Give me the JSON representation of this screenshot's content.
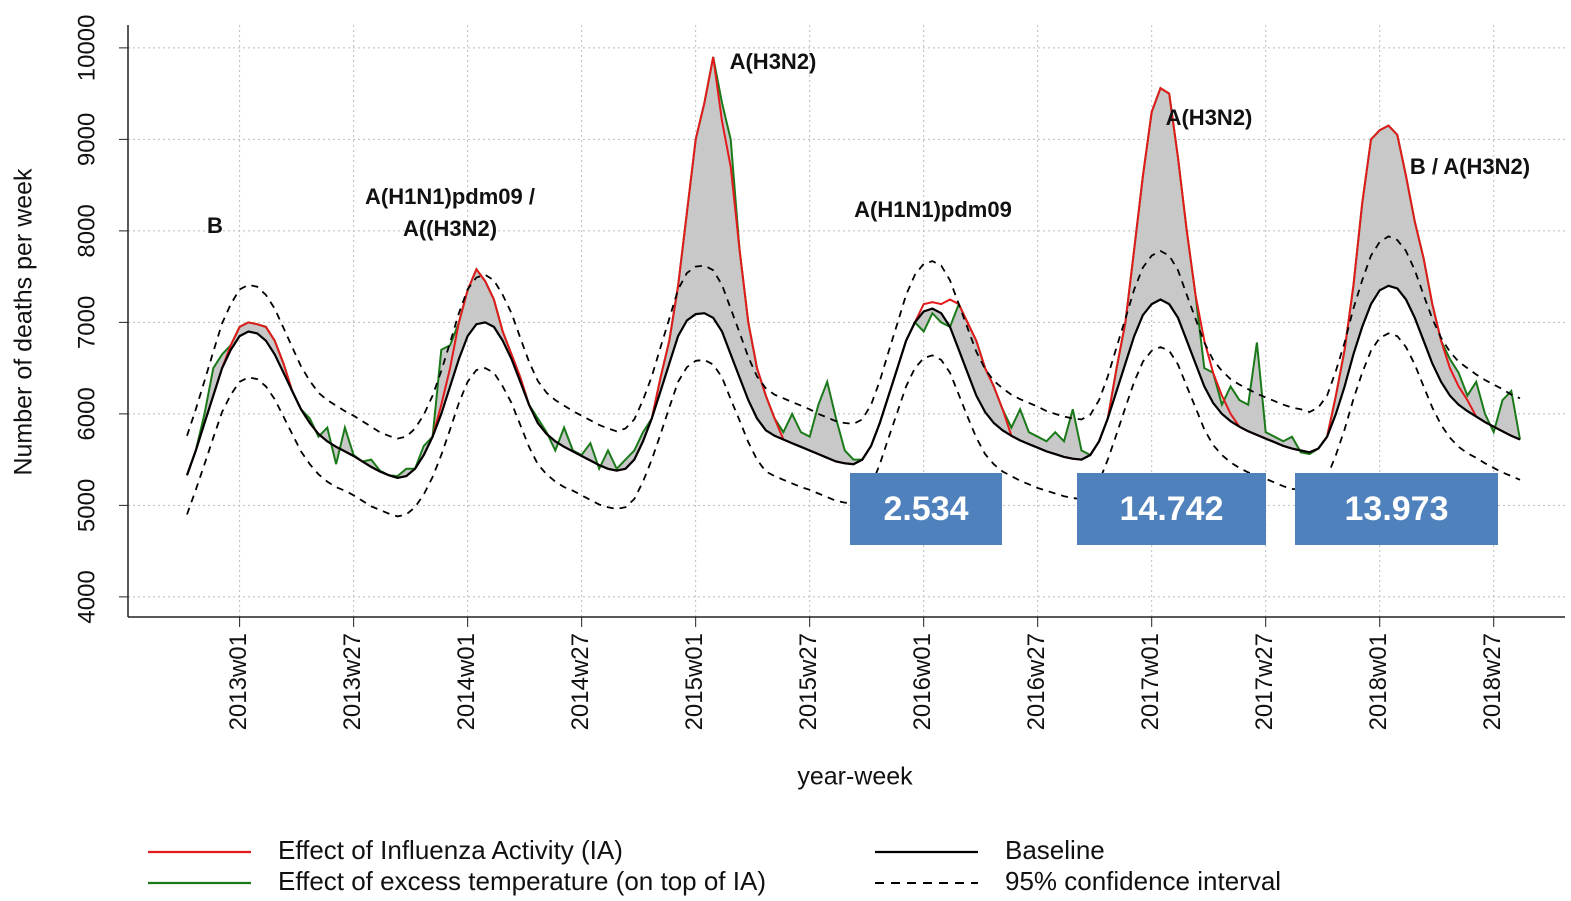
{
  "chart_data": {
    "type": "line",
    "xlabel": "year-week",
    "ylabel": "Number of deaths per week",
    "ylim": [
      3780,
      10250
    ],
    "yticks": [
      4000,
      5000,
      6000,
      7000,
      8000,
      9000,
      10000
    ],
    "grid": true,
    "legend": "bottom",
    "categories": [
      null,
      null,
      null,
      null,
      null,
      null,
      "2013w01",
      null,
      null,
      null,
      null,
      null,
      null,
      null,
      null,
      null,
      null,
      null,
      null,
      "2013w27",
      null,
      null,
      null,
      null,
      null,
      null,
      null,
      null,
      null,
      null,
      null,
      null,
      "2014w01",
      null,
      null,
      null,
      null,
      null,
      null,
      null,
      null,
      null,
      null,
      null,
      null,
      "2014w27",
      null,
      null,
      null,
      null,
      null,
      null,
      null,
      null,
      null,
      null,
      null,
      null,
      "2015w01",
      null,
      null,
      null,
      null,
      null,
      null,
      null,
      null,
      null,
      null,
      null,
      null,
      "2015w27",
      null,
      null,
      null,
      null,
      null,
      null,
      null,
      null,
      null,
      null,
      null,
      null,
      "2016w01",
      null,
      null,
      null,
      null,
      null,
      null,
      null,
      null,
      null,
      null,
      null,
      null,
      "2016w27",
      null,
      null,
      null,
      null,
      null,
      null,
      null,
      null,
      null,
      null,
      null,
      null,
      "2017w01",
      null,
      null,
      null,
      null,
      null,
      null,
      null,
      null,
      null,
      null,
      null,
      null,
      "2017w27",
      null,
      null,
      null,
      null,
      null,
      null,
      null,
      null,
      null,
      null,
      null,
      null,
      "2018w01",
      null,
      null,
      null,
      null,
      null,
      null,
      null,
      null,
      null,
      null,
      null,
      null,
      "2018w27",
      null,
      null,
      null
    ],
    "series": [
      {
        "name": "Effect of Influenza Activity (IA)",
        "color": "#e31a1c",
        "values": [
          5330,
          5600,
          5900,
          6200,
          6500,
          6750,
          6950,
          7000,
          6980,
          6950,
          6800,
          6550,
          6250,
          6050,
          5900,
          5780,
          5700,
          5640,
          5590,
          5540,
          5480,
          5420,
          5370,
          5330,
          5300,
          5320,
          5400,
          5550,
          5750,
          6100,
          6500,
          7000,
          7350,
          7580,
          7450,
          7250,
          6900,
          6650,
          6400,
          6100,
          5900,
          5780,
          5700,
          5640,
          5590,
          5540,
          5490,
          5440,
          5400,
          5380,
          5400,
          5500,
          5700,
          5950,
          6400,
          6800,
          7400,
          8200,
          9000,
          9400,
          9900,
          9200,
          8700,
          7800,
          7000,
          6500,
          6200,
          5950,
          5720,
          5680,
          5640,
          5600,
          5560,
          5520,
          5480,
          5460,
          5450,
          5500,
          5650,
          5900,
          6200,
          6500,
          6800,
          7000,
          7200,
          7220,
          7200,
          7250,
          7200,
          7000,
          6800,
          6500,
          6300,
          6050,
          5760,
          5710,
          5670,
          5630,
          5590,
          5560,
          5530,
          5510,
          5500,
          5550,
          5700,
          5950,
          6500,
          7000,
          7800,
          8600,
          9300,
          9560,
          9500,
          8800,
          8000,
          7300,
          6800,
          6450,
          6200,
          6000,
          5860,
          5810,
          5770,
          5730,
          5690,
          5650,
          5620,
          5600,
          5580,
          5620,
          5750,
          6200,
          6700,
          7400,
          8300,
          9000,
          9100,
          9150,
          9050,
          8600,
          8100,
          7700,
          7200,
          6800,
          6500,
          6300,
          6150,
          5970,
          5910,
          5860,
          5810,
          5760,
          5720
        ]
      },
      {
        "name": "Effect of excess temperature (on top of IA)",
        "color": "#1a7a1a",
        "values": [
          5330,
          5600,
          6000,
          6500,
          6650,
          6750,
          6950,
          7000,
          6980,
          6950,
          6800,
          6550,
          6250,
          6050,
          5950,
          5750,
          5850,
          5450,
          5850,
          5550,
          5480,
          5500,
          5380,
          5330,
          5320,
          5400,
          5400,
          5650,
          5750,
          6700,
          6750,
          7000,
          7350,
          7580,
          7450,
          7250,
          6900,
          6650,
          6400,
          6100,
          5950,
          5800,
          5600,
          5850,
          5600,
          5550,
          5680,
          5400,
          5600,
          5400,
          5500,
          5600,
          5800,
          5950,
          6400,
          6800,
          7400,
          8200,
          9000,
          9400,
          9900,
          9400,
          9000,
          7800,
          7000,
          6500,
          6200,
          5950,
          5800,
          6000,
          5800,
          5750,
          6100,
          6350,
          5950,
          5600,
          5500,
          5500,
          5650,
          5900,
          6200,
          6500,
          6800,
          7000,
          6900,
          7100,
          7000,
          6950,
          7200,
          7000,
          6800,
          6500,
          6300,
          6050,
          5850,
          6050,
          5800,
          5750,
          5700,
          5800,
          5700,
          6050,
          5600,
          5550,
          5700,
          5950,
          6500,
          7000,
          7800,
          8600,
          9300,
          9560,
          9500,
          8800,
          8000,
          7300,
          6500,
          6450,
          6100,
          6300,
          6150,
          6100,
          6780,
          5800,
          5750,
          5700,
          5750,
          5580,
          5560,
          5620,
          5750,
          6200,
          6700,
          7400,
          8300,
          9000,
          9100,
          9150,
          9050,
          8600,
          8100,
          7700,
          7200,
          6800,
          6600,
          6450,
          6200,
          6350,
          6000,
          5800,
          6150,
          6250,
          5720
        ]
      },
      {
        "name": "Baseline",
        "color": "#000000",
        "values": [
          5330,
          5600,
          5900,
          6200,
          6500,
          6700,
          6850,
          6900,
          6880,
          6800,
          6650,
          6450,
          6250,
          6050,
          5900,
          5780,
          5700,
          5640,
          5590,
          5540,
          5480,
          5420,
          5370,
          5330,
          5300,
          5320,
          5400,
          5550,
          5750,
          6000,
          6300,
          6600,
          6850,
          6980,
          7000,
          6950,
          6800,
          6600,
          6350,
          6100,
          5900,
          5780,
          5700,
          5640,
          5590,
          5540,
          5490,
          5440,
          5400,
          5380,
          5400,
          5500,
          5700,
          5950,
          6250,
          6550,
          6850,
          7020,
          7090,
          7100,
          7050,
          6900,
          6650,
          6400,
          6150,
          5950,
          5820,
          5760,
          5720,
          5680,
          5640,
          5600,
          5560,
          5520,
          5480,
          5460,
          5450,
          5500,
          5650,
          5900,
          6200,
          6500,
          6800,
          7000,
          7120,
          7150,
          7100,
          6950,
          6700,
          6450,
          6200,
          6020,
          5900,
          5820,
          5760,
          5710,
          5670,
          5630,
          5590,
          5560,
          5530,
          5510,
          5500,
          5550,
          5700,
          5950,
          6250,
          6550,
          6850,
          7080,
          7200,
          7250,
          7200,
          7050,
          6800,
          6550,
          6300,
          6120,
          6000,
          5920,
          5860,
          5810,
          5770,
          5730,
          5690,
          5650,
          5620,
          5600,
          5580,
          5620,
          5750,
          6000,
          6300,
          6650,
          6950,
          7200,
          7350,
          7400,
          7370,
          7250,
          7050,
          6800,
          6550,
          6350,
          6200,
          6100,
          6030,
          5970,
          5910,
          5860,
          5810,
          5760,
          5720
        ]
      }
    ],
    "confidence_interval": {
      "name": "95% confidence interval",
      "color": "#000000",
      "upper": [
        5760,
        6050,
        6360,
        6680,
        6990,
        7200,
        7360,
        7410,
        7390,
        7300,
        7150,
        6940,
        6730,
        6520,
        6360,
        6230,
        6150,
        6090,
        6030,
        5980,
        5920,
        5860,
        5800,
        5760,
        5730,
        5750,
        5840,
        5990,
        6200,
        6470,
        6780,
        7100,
        7360,
        7490,
        7520,
        7460,
        7300,
        7100,
        6830,
        6570,
        6360,
        6230,
        6150,
        6090,
        6030,
        5980,
        5930,
        5880,
        5840,
        5810,
        5840,
        5940,
        6150,
        6410,
        6730,
        7040,
        7360,
        7540,
        7610,
        7620,
        7570,
        7410,
        7150,
        6890,
        6620,
        6410,
        6280,
        6210,
        6170,
        6130,
        6090,
        6050,
        6000,
        5960,
        5920,
        5900,
        5890,
        5940,
        6100,
        6360,
        6680,
        6990,
        7300,
        7520,
        7640,
        7670,
        7620,
        7460,
        7200,
        6940,
        6680,
        6490,
        6360,
        6280,
        6210,
        6160,
        6120,
        6080,
        6030,
        6000,
        5970,
        5950,
        5940,
        5990,
        6150,
        6410,
        6730,
        7040,
        7360,
        7600,
        7730,
        7780,
        7730,
        7570,
        7300,
        7040,
        6780,
        6590,
        6470,
        6380,
        6320,
        6270,
        6220,
        6180,
        6140,
        6100,
        6070,
        6050,
        6020,
        6070,
        6200,
        6470,
        6780,
        7150,
        7460,
        7730,
        7880,
        7940,
        7900,
        7780,
        7570,
        7300,
        7040,
        6830,
        6680,
        6570,
        6500,
        6430,
        6370,
        6320,
        6270,
        6210,
        6170
      ],
      "lower": [
        4900,
        5170,
        5450,
        5740,
        6020,
        6210,
        6350,
        6400,
        6380,
        6300,
        6160,
        5970,
        5780,
        5590,
        5450,
        5340,
        5260,
        5200,
        5160,
        5110,
        5050,
        4990,
        4950,
        4910,
        4880,
        4900,
        4980,
        5120,
        5310,
        5550,
        5830,
        6120,
        6350,
        6480,
        6500,
        6450,
        6300,
        6120,
        5880,
        5640,
        5450,
        5340,
        5260,
        5200,
        5160,
        5110,
        5060,
        5010,
        4980,
        4960,
        4980,
        5070,
        5260,
        5500,
        5780,
        6070,
        6350,
        6510,
        6580,
        6590,
        6540,
        6400,
        6160,
        5930,
        5690,
        5500,
        5370,
        5320,
        5280,
        5240,
        5200,
        5170,
        5130,
        5090,
        5050,
        5030,
        5020,
        5070,
        5210,
        5450,
        5740,
        6020,
        6300,
        6500,
        6610,
        6640,
        6590,
        6450,
        6210,
        5970,
        5740,
        5560,
        5450,
        5370,
        5320,
        5270,
        5230,
        5190,
        5160,
        5130,
        5100,
        5080,
        5070,
        5120,
        5260,
        5500,
        5780,
        6070,
        6350,
        6570,
        6690,
        6730,
        6690,
        6540,
        6300,
        6070,
        5830,
        5660,
        5550,
        5470,
        5410,
        5360,
        5330,
        5290,
        5250,
        5210,
        5180,
        5170,
        5150,
        5180,
        5310,
        5550,
        5830,
        6160,
        6450,
        6690,
        6830,
        6880,
        6850,
        6730,
        6540,
        6300,
        6070,
        5880,
        5740,
        5640,
        5570,
        5520,
        5460,
        5410,
        5360,
        5320,
        5280
      ]
    },
    "annotations": [
      "B",
      "A(H1N1)pdm09 /",
      "A((H3N2)",
      "A(H3N2)",
      "A(H1N1)pdm09",
      "A(H3N2)",
      "B / A(H3N2)"
    ],
    "boxes": [
      "2.534",
      "14.742",
      "13.973"
    ]
  }
}
